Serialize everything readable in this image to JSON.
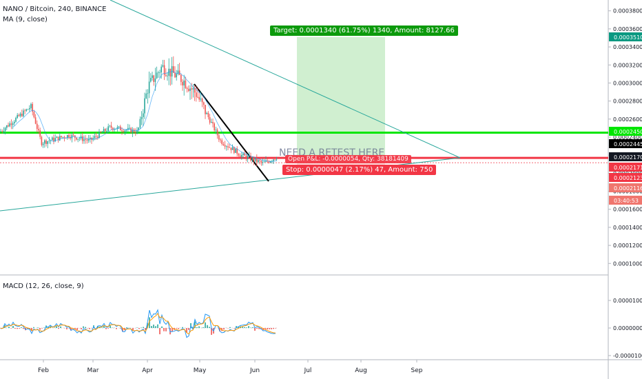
{
  "header": {
    "symbol_line": "NANO / Bitcoin, 240, BINANCE",
    "ma_label": "MA (9, close)",
    "macd_label": "MACD (12, 26, close, 9)"
  },
  "annotations": {
    "target_label": "Target: 0.0001340 (61.75%) 1340, Amount: 8127.66",
    "stop_label": "Stop: 0.0000047 (2.17%) 47, Amount: 750",
    "open_label": "Open P&L: -0.0000054, Qty: 38181409",
    "note": "NEED A RETEST HERE"
  },
  "price_axis": {
    "ticks": [
      "0.0003800",
      "0.0003600",
      "0.0003400",
      "0.0003200",
      "0.0003000",
      "0.0002800",
      "0.0002600",
      "0.0002400",
      "0.0002200",
      "0.0002000",
      "0.0001800",
      "0.0001600",
      "0.0001400",
      "0.0001200",
      "0.0001000"
    ],
    "badges": [
      {
        "text": "0.0003510",
        "bg": "#089981"
      },
      {
        "text": "0.0002450",
        "bg": "#00e600"
      },
      {
        "text": "0.0002445",
        "bg": "#000000"
      },
      {
        "text": "0.0002170",
        "bg": "#131722"
      },
      {
        "text": "0.0002171",
        "bg": "#f23645"
      },
      {
        "text": "0.0002123",
        "bg": "#f23645"
      },
      {
        "text": "0.0002116",
        "bg": "#f0766e"
      },
      {
        "text": "03:40:53",
        "bg": "#f0766e"
      }
    ]
  },
  "macd_axis": {
    "ticks": [
      "0.0000100",
      "0.0000000",
      "-0.0000100"
    ]
  },
  "time_axis": {
    "labels": [
      "Feb",
      "Mar",
      "Apr",
      "May",
      "Jun",
      "Jul",
      "Aug",
      "Sep"
    ]
  },
  "colors": {
    "up": "#26a69a",
    "down": "#ef5350",
    "support_line": "#00e600",
    "resistance_line": "#f23645",
    "target_zone": "#c8ecc8",
    "triangle_line": "#26a69a",
    "macd_line": "#2196f3",
    "signal_line": "#ff9800"
  },
  "chart_data": {
    "type": "candlestick",
    "symbol": "NANO/BTC",
    "timeframe": "240",
    "exchange": "BINANCE",
    "period_labels": [
      "Feb",
      "Mar",
      "Apr",
      "May",
      "Jun",
      "Jul",
      "Aug",
      "Sep"
    ],
    "price_anchors": [
      {
        "x": "Jan",
        "y": 0.000246
      },
      {
        "x": "late Jan",
        "y": 0.000274
      },
      {
        "x": "Feb",
        "y": 0.000234
      },
      {
        "x": "mid Feb",
        "y": 0.000242
      },
      {
        "x": "Mar",
        "y": 0.000236
      },
      {
        "x": "mid Mar",
        "y": 0.000251
      },
      {
        "x": "late Mar",
        "y": 0.000246
      },
      {
        "x": "early Apr",
        "y": 0.000296
      },
      {
        "x": "mid Apr",
        "y": 0.000318
      },
      {
        "x": "late Apr",
        "y": 0.000304
      },
      {
        "x": "May",
        "y": 0.000288
      },
      {
        "x": "mid May",
        "y": 0.000236
      },
      {
        "x": "late May",
        "y": 0.00022
      },
      {
        "x": "Jun",
        "y": 0.000211
      },
      {
        "x": "mid Jun",
        "y": 0.000218
      }
    ],
    "horizontal_levels": [
      {
        "price": 0.000245,
        "color": "green"
      },
      {
        "price": 0.000217,
        "color": "red"
      }
    ],
    "position": {
      "target_price": 0.000351,
      "target_pct": 61.75,
      "stop_pct": 2.17
    },
    "ylim": [
      8.8e-05,
      0.000392
    ]
  }
}
